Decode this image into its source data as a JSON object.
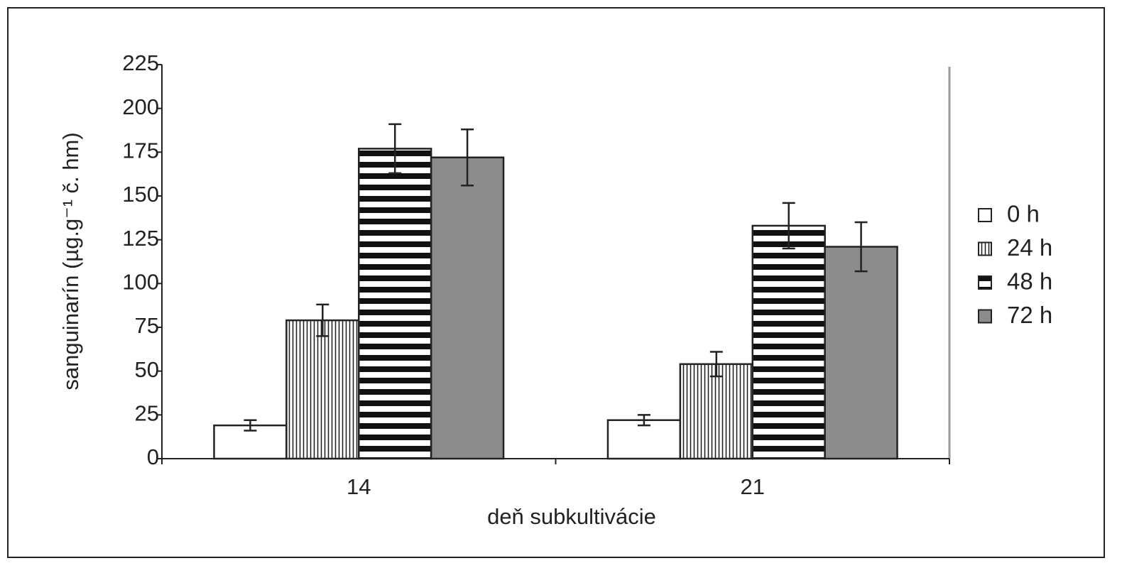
{
  "chart_data": {
    "type": "bar",
    "y_label": "sanguinarín (µg.g⁻¹ č. hm)",
    "x_label": "deň subkultivácie",
    "categories": [
      "14",
      "21"
    ],
    "series": [
      {
        "name": "0 h",
        "color": "#ffffff",
        "pattern": "solid",
        "values": [
          19,
          22
        ],
        "errors": [
          3,
          3
        ]
      },
      {
        "name": "24 h",
        "color": "#ffffff",
        "pattern": "vertical-lines",
        "values": [
          79,
          54
        ],
        "errors": [
          9,
          7
        ]
      },
      {
        "name": "48 h",
        "color": "#ffffff",
        "pattern": "horizontal-stripes",
        "values": [
          177,
          133
        ],
        "errors": [
          14,
          13
        ]
      },
      {
        "name": "72 h",
        "color": "#8c8c8c",
        "pattern": "solid",
        "values": [
          172,
          121
        ],
        "errors": [
          16,
          14
        ]
      }
    ],
    "ylim": [
      0,
      225
    ],
    "yticks": [
      0,
      25,
      50,
      75,
      100,
      125,
      150,
      175,
      200,
      225
    ],
    "legend": "right"
  }
}
